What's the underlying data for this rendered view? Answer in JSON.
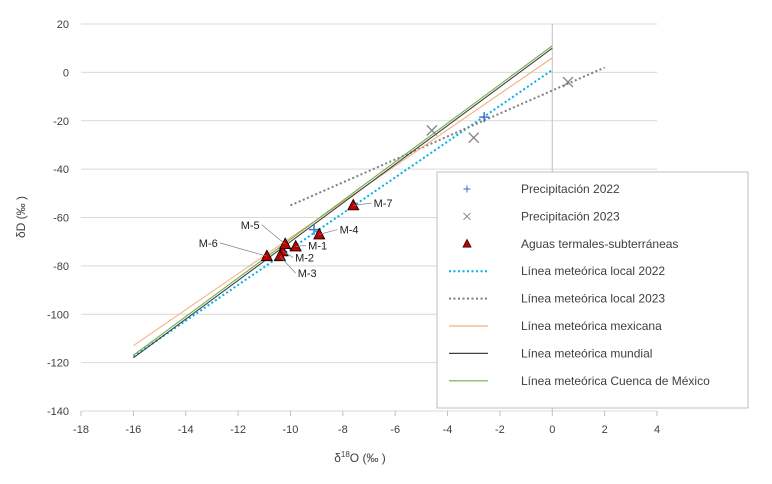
{
  "chart_data": {
    "type": "scatter",
    "xlabel": "δ18O (‰ )",
    "xlabel_main": "δ",
    "xlabel_sup": "18",
    "xlabel_tail": "O (‰ )",
    "ylabel": "δD (‰ )",
    "xlim": [
      -18,
      4
    ],
    "ylim": [
      -140,
      20
    ],
    "xticks": [
      -18,
      -16,
      -14,
      -12,
      -10,
      -8,
      -6,
      -4,
      -2,
      0,
      2,
      4
    ],
    "yticks": [
      -140,
      -120,
      -100,
      -80,
      -60,
      -40,
      -20,
      0,
      20
    ],
    "grid": "horizontal",
    "legend_position": "right",
    "series": [
      {
        "name": "Precipitación 2022",
        "kind": "scatter",
        "marker": "plus",
        "color": "#4472c4",
        "points": [
          [
            -2.6,
            -18.5
          ],
          [
            -9.1,
            -65.0
          ]
        ]
      },
      {
        "name": "Precipitación 2023",
        "kind": "scatter",
        "marker": "x",
        "color": "#7f7f7f",
        "points": [
          [
            -4.6,
            -24.0
          ],
          [
            -3.0,
            -27.0
          ],
          [
            0.6,
            -4.0
          ]
        ]
      },
      {
        "name": "Aguas termales-subterráneas",
        "kind": "scatter",
        "marker": "triangle",
        "color": "#c00000",
        "points": [
          [
            -9.8,
            -72.0
          ],
          [
            -10.3,
            -74.0
          ],
          [
            -10.4,
            -76.0
          ],
          [
            -8.9,
            -67.0
          ],
          [
            -10.2,
            -71.0
          ],
          [
            -10.9,
            -76.0
          ],
          [
            -7.6,
            -55.0
          ]
        ]
      },
      {
        "name": "Línea meteórica local 2022",
        "kind": "line",
        "dash": "dotted",
        "color": "#00b0f0",
        "points": [
          [
            -16,
            -117.5
          ],
          [
            0,
            1.0
          ]
        ]
      },
      {
        "name": "Línea meteórica local 2023",
        "kind": "line",
        "dash": "dotted",
        "color": "#7f7f7f",
        "points": [
          [
            -10,
            -55.0
          ],
          [
            2,
            2.0
          ]
        ]
      },
      {
        "name": "Línea meteórica mexicana",
        "kind": "line",
        "dash": "solid",
        "color": "#f4b183",
        "points": [
          [
            -16,
            -113.0
          ],
          [
            0,
            6.0
          ]
        ]
      },
      {
        "name": "Línea meteórica mundial",
        "kind": "line",
        "dash": "solid",
        "color": "#404040",
        "points": [
          [
            -16,
            -118.0
          ],
          [
            0,
            10.0
          ]
        ]
      },
      {
        "name": "Línea meteórica Cuenca de México",
        "kind": "line",
        "dash": "solid",
        "color": "#70ad47",
        "points": [
          [
            -16,
            -117.0
          ],
          [
            0,
            11.0
          ]
        ]
      }
    ],
    "annotations": [
      {
        "text": "M-1",
        "point": [
          -9.8,
          -72.0
        ],
        "label_at": [
          -9.4,
          -71.5
        ]
      },
      {
        "text": "M-2",
        "point": [
          -10.3,
          -74.0
        ],
        "label_at": [
          -9.9,
          -76.5
        ]
      },
      {
        "text": "M-3",
        "point": [
          -10.4,
          -76.0
        ],
        "label_at": [
          -9.8,
          -83.0
        ]
      },
      {
        "text": "M-4",
        "point": [
          -8.9,
          -67.0
        ],
        "label_at": [
          -8.2,
          -65.0
        ]
      },
      {
        "text": "M-5",
        "point": [
          -10.2,
          -71.0
        ],
        "label_at": [
          -11.1,
          -63.0
        ]
      },
      {
        "text": "M-6",
        "point": [
          -10.9,
          -76.0
        ],
        "label_at": [
          -12.7,
          -70.5
        ]
      },
      {
        "text": "M-7",
        "point": [
          -7.6,
          -55.0
        ],
        "label_at": [
          -6.9,
          -54.0
        ]
      }
    ]
  }
}
